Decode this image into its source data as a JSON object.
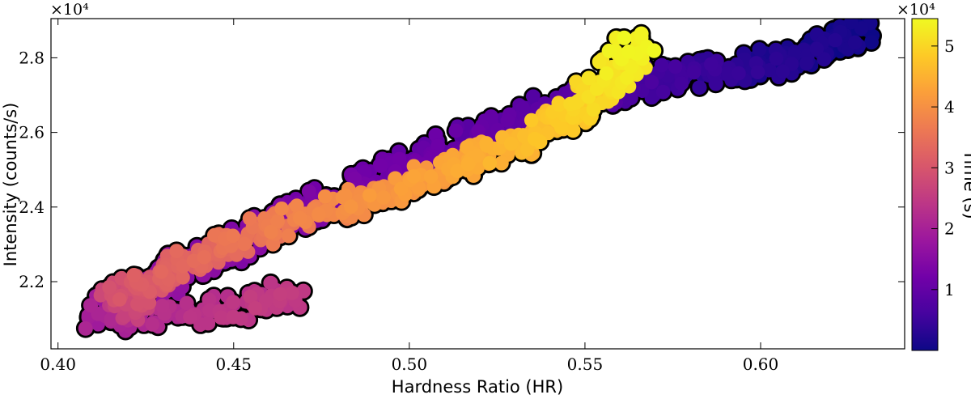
{
  "chart_data": {
    "type": "scatter",
    "title": "",
    "xlabel": "Hardness Ratio (HR)",
    "ylabel": "Intensity (counts/s)",
    "colorbar_label": "Time (s)",
    "y_multiplier_label": "×10⁴",
    "colorbar_multiplier_label": "×10⁴",
    "xlim": [
      0.398,
      0.641
    ],
    "ylim": [
      2.02,
      2.905
    ],
    "colorbar_lim": [
      0,
      5.45
    ],
    "x_ticks": [
      {
        "value": 0.4,
        "label": "0.40"
      },
      {
        "value": 0.45,
        "label": "0.45"
      },
      {
        "value": 0.5,
        "label": "0.50"
      },
      {
        "value": 0.55,
        "label": "0.55"
      },
      {
        "value": 0.6,
        "label": "0.60"
      }
    ],
    "y_ticks": [
      {
        "value": 2.2,
        "label": "2.2"
      },
      {
        "value": 2.4,
        "label": "2.4"
      },
      {
        "value": 2.6,
        "label": "2.6"
      },
      {
        "value": 2.8,
        "label": "2.8"
      }
    ],
    "colorbar_ticks": [
      {
        "value": 1,
        "label": "1"
      },
      {
        "value": 2,
        "label": "2"
      },
      {
        "value": 3,
        "label": "3"
      },
      {
        "value": 4,
        "label": "4"
      },
      {
        "value": 5,
        "label": "5"
      }
    ],
    "colormap": [
      "#0d0887",
      "#46039f",
      "#7201a8",
      "#9c179e",
      "#bd3786",
      "#d8576b",
      "#ed7953",
      "#fb9f3a",
      "#fdca26",
      "#f0f921"
    ],
    "grid": false,
    "series": [
      {
        "trend": [
          [
            0.629,
            2.87,
            0.0
          ],
          [
            0.623,
            2.855,
            0.06
          ],
          [
            0.615,
            2.815,
            0.14
          ],
          [
            0.605,
            2.79,
            0.22
          ],
          [
            0.595,
            2.77,
            0.3
          ],
          [
            0.585,
            2.76,
            0.4
          ],
          [
            0.575,
            2.75,
            0.5
          ],
          [
            0.565,
            2.73,
            0.6
          ],
          [
            0.555,
            2.7,
            0.7
          ],
          [
            0.545,
            2.68,
            0.78
          ],
          [
            0.535,
            2.65,
            0.86
          ],
          [
            0.525,
            2.61,
            0.94
          ],
          [
            0.515,
            2.57,
            1.02
          ],
          [
            0.505,
            2.53,
            1.08
          ],
          [
            0.495,
            2.49,
            1.14
          ],
          [
            0.485,
            2.45,
            1.2
          ],
          [
            0.475,
            2.41,
            1.26
          ],
          [
            0.465,
            2.37,
            1.32
          ],
          [
            0.455,
            2.33,
            1.4
          ],
          [
            0.445,
            2.28,
            1.5
          ],
          [
            0.435,
            2.23,
            1.62
          ],
          [
            0.425,
            2.18,
            1.76
          ],
          [
            0.417,
            2.14,
            1.9
          ],
          [
            0.412,
            2.1,
            2.0
          ],
          [
            0.425,
            2.095,
            2.15
          ],
          [
            0.44,
            2.12,
            2.3
          ],
          [
            0.455,
            2.135,
            2.4
          ],
          [
            0.465,
            2.165,
            2.5
          ]
        ],
        "trend2": [
          [
            0.42,
            2.12,
            2.55
          ],
          [
            0.418,
            2.16,
            2.8
          ],
          [
            0.424,
            2.19,
            3.0
          ],
          [
            0.432,
            2.23,
            3.2
          ],
          [
            0.445,
            2.29,
            3.4
          ],
          [
            0.46,
            2.34,
            3.6
          ],
          [
            0.475,
            2.39,
            3.8
          ],
          [
            0.49,
            2.43,
            4.0
          ],
          [
            0.505,
            2.48,
            4.2
          ],
          [
            0.52,
            2.53,
            4.4
          ],
          [
            0.532,
            2.58,
            4.6
          ],
          [
            0.545,
            2.64,
            4.8
          ],
          [
            0.552,
            2.7,
            5.0
          ],
          [
            0.56,
            2.76,
            5.2
          ],
          [
            0.565,
            2.85,
            5.4
          ]
        ]
      }
    ]
  }
}
